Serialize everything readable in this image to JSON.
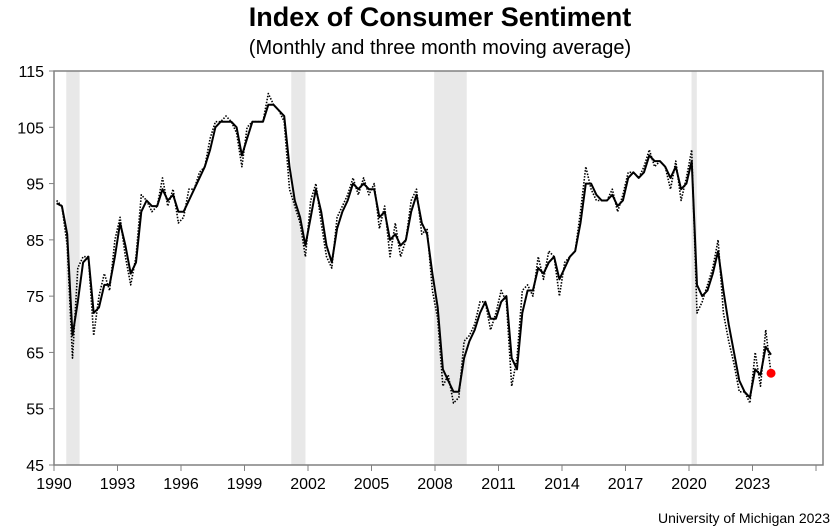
{
  "chart_data": {
    "type": "line",
    "title": "Index of Consumer Sentiment",
    "subtitle": "(Monthly and three month moving average)",
    "source": "University of Michigan 2023",
    "xlim": [
      1990,
      2026.33
    ],
    "ylim": [
      45,
      115
    ],
    "x_ticks": [
      "1990",
      "1993",
      "1996",
      "1999",
      "2002",
      "2005",
      "2008",
      "2011",
      "2014",
      "2017",
      "2020",
      "2023"
    ],
    "y_ticks": [
      "45",
      "55",
      "65",
      "75",
      "85",
      "95",
      "105",
      "115"
    ],
    "grid": false,
    "legend": "none",
    "recessions": [
      [
        1990.58,
        1991.21
      ],
      [
        2001.21,
        2001.88
      ],
      [
        2007.96,
        2009.5
      ],
      [
        2020.12,
        2020.37
      ]
    ],
    "dates": [
      "1990-02",
      "1990-05",
      "1990-08",
      "1990-11",
      "1991-02",
      "1991-05",
      "1991-08",
      "1991-11",
      "1992-02",
      "1992-05",
      "1992-08",
      "1992-11",
      "1993-02",
      "1993-05",
      "1993-08",
      "1993-11",
      "1994-02",
      "1994-05",
      "1994-08",
      "1994-11",
      "1995-02",
      "1995-05",
      "1995-08",
      "1995-11",
      "1996-02",
      "1996-05",
      "1996-08",
      "1996-11",
      "1997-02",
      "1997-05",
      "1997-08",
      "1997-11",
      "1998-02",
      "1998-05",
      "1998-08",
      "1998-11",
      "1999-02",
      "1999-05",
      "1999-08",
      "1999-11",
      "2000-02",
      "2000-05",
      "2000-08",
      "2000-11",
      "2001-02",
      "2001-05",
      "2001-08",
      "2001-11",
      "2002-02",
      "2002-05",
      "2002-08",
      "2002-11",
      "2003-02",
      "2003-05",
      "2003-08",
      "2003-11",
      "2004-02",
      "2004-05",
      "2004-08",
      "2004-11",
      "2005-02",
      "2005-05",
      "2005-08",
      "2005-11",
      "2006-02",
      "2006-05",
      "2006-08",
      "2006-11",
      "2007-02",
      "2007-05",
      "2007-08",
      "2007-11",
      "2008-02",
      "2008-05",
      "2008-08",
      "2008-11",
      "2009-02",
      "2009-05",
      "2009-08",
      "2009-11",
      "2010-02",
      "2010-05",
      "2010-08",
      "2010-11",
      "2011-02",
      "2011-05",
      "2011-08",
      "2011-11",
      "2012-02",
      "2012-05",
      "2012-08",
      "2012-11",
      "2013-02",
      "2013-05",
      "2013-08",
      "2013-11",
      "2014-02",
      "2014-05",
      "2014-08",
      "2014-11",
      "2015-02",
      "2015-05",
      "2015-08",
      "2015-11",
      "2016-02",
      "2016-05",
      "2016-08",
      "2016-11",
      "2017-02",
      "2017-05",
      "2017-08",
      "2017-11",
      "2018-02",
      "2018-05",
      "2018-08",
      "2018-11",
      "2019-02",
      "2019-05",
      "2019-08",
      "2019-11",
      "2020-02",
      "2020-05",
      "2020-08",
      "2020-11",
      "2021-02",
      "2021-05",
      "2021-08",
      "2021-11",
      "2022-02",
      "2022-05",
      "2022-08",
      "2022-11",
      "2023-02",
      "2023-05",
      "2023-08",
      "2023-11"
    ],
    "series": [
      {
        "style": "dotted",
        "values": [
          92,
          91,
          84,
          64,
          80,
          82,
          82,
          68,
          75,
          79,
          76,
          85,
          89,
          82,
          77,
          82,
          93,
          92,
          90,
          91,
          96,
          91,
          94,
          88,
          89,
          94,
          94,
          97,
          98,
          103,
          106,
          106,
          107,
          106,
          104,
          98,
          105,
          106,
          106,
          106,
          111,
          109,
          108,
          106,
          94,
          91,
          88,
          82,
          92,
          95,
          88,
          82,
          80,
          89,
          91,
          93,
          96,
          93,
          96,
          93,
          95,
          87,
          91,
          82,
          88,
          82,
          85,
          92,
          94,
          86,
          87,
          76,
          71,
          59,
          61,
          56,
          57,
          67,
          68,
          70,
          74,
          74,
          69,
          72,
          76,
          74,
          59,
          64,
          76,
          77,
          75,
          82,
          78,
          83,
          82,
          75,
          81,
          82,
          83,
          90,
          98,
          94,
          92,
          92,
          92,
          94,
          90,
          93,
          97,
          97,
          96,
          98,
          101,
          98,
          99,
          98,
          94,
          99,
          92,
          96,
          101,
          72,
          74,
          77,
          80,
          85,
          72,
          67,
          63,
          58,
          58,
          56,
          65,
          59,
          69,
          61.3
        ]
      },
      {
        "style": "solid",
        "values": [
          91.5,
          91,
          86,
          68,
          74,
          81,
          82,
          72,
          73,
          77,
          77,
          82,
          88,
          84,
          79,
          81,
          90,
          92,
          91,
          91,
          94,
          92,
          93,
          90,
          90,
          92,
          94,
          96,
          98,
          101,
          105,
          106,
          106,
          106,
          105,
          100,
          103,
          106,
          106,
          106,
          109,
          109,
          108,
          107,
          98,
          92,
          89,
          84,
          89,
          94,
          90,
          84,
          81,
          87,
          90,
          92,
          95,
          94,
          95,
          94,
          94,
          89,
          90,
          85,
          86,
          84,
          85,
          90,
          93,
          88,
          86,
          79,
          73,
          62,
          60,
          58,
          58,
          64,
          67,
          69,
          72,
          74,
          71,
          71,
          74,
          75,
          64,
          62,
          72,
          76,
          76,
          80,
          79,
          81,
          82,
          78,
          80,
          82,
          83,
          88,
          95,
          95,
          93,
          92,
          92,
          93,
          91,
          92,
          96,
          97,
          96,
          97,
          100,
          99,
          99,
          98,
          96,
          98,
          94,
          95,
          99,
          77,
          75,
          76,
          79,
          83,
          76,
          70,
          65,
          60,
          58,
          57,
          62,
          61,
          66,
          64.6
        ]
      }
    ],
    "highlight": {
      "date": "2023-11",
      "value": 61.3,
      "color": "#ff0000"
    },
    "colors": {
      "line": "#000000",
      "recession": "#e8e8e8",
      "axis": "#808080"
    }
  }
}
